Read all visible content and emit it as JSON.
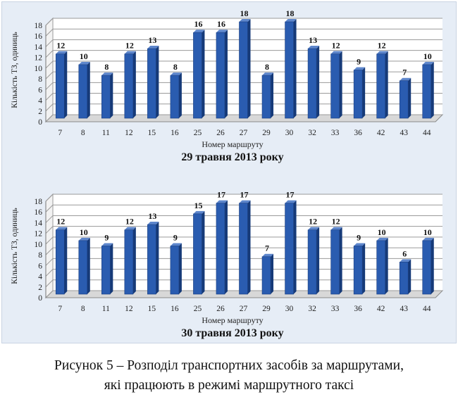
{
  "chart_data": [
    {
      "type": "bar",
      "title": "29 травня 2013 року",
      "xlabel": "Номер маршруту",
      "ylabel": "Кількість ТЗ, одиниць",
      "categories": [
        "7",
        "8",
        "11",
        "12",
        "15",
        "16",
        "25",
        "26",
        "27",
        "29",
        "30",
        "32",
        "33",
        "36",
        "42",
        "43",
        "44"
      ],
      "values": [
        12,
        10,
        8,
        12,
        13,
        8,
        16,
        16,
        18,
        8,
        18,
        13,
        12,
        9,
        12,
        7,
        10
      ],
      "ylim": [
        0,
        18
      ],
      "yticks": [
        0,
        2,
        4,
        6,
        8,
        10,
        12,
        14,
        16,
        18
      ],
      "grid": true,
      "bar_color": "#2a5cb0"
    },
    {
      "type": "bar",
      "title": "30 травня 2013 року",
      "xlabel": "Номер маршруту",
      "ylabel": "Кількість ТЗ, одиниць",
      "categories": [
        "7",
        "8",
        "11",
        "12",
        "15",
        "16",
        "25",
        "26",
        "27",
        "29",
        "30",
        "32",
        "33",
        "36",
        "42",
        "43",
        "44"
      ],
      "values": [
        12,
        10,
        9,
        12,
        13,
        9,
        15,
        17,
        17,
        7,
        17,
        12,
        12,
        9,
        10,
        6,
        10
      ],
      "ylim": [
        0,
        18
      ],
      "yticks": [
        0,
        2,
        4,
        6,
        8,
        10,
        12,
        14,
        16,
        18
      ],
      "grid": true,
      "bar_color": "#2a5cb0"
    }
  ],
  "caption": {
    "line1": "Рисунок 5 – Розподіл транспортних засобів за маршрутами,",
    "line2": "які працюють в режимі маршрутного таксі"
  }
}
